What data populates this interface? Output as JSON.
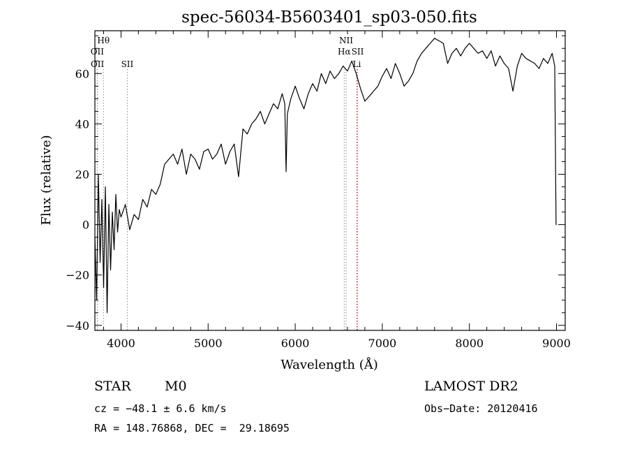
{
  "chart_data": {
    "type": "line",
    "title": "spec-56034-B5603401_sp03-050.fits",
    "xlabel": "Wavelength (Å)",
    "ylabel": "Flux (relative)",
    "xlim": [
      3700,
      9100
    ],
    "ylim": [
      -42,
      77
    ],
    "x_ticks": [
      4000,
      5000,
      6000,
      7000,
      8000,
      9000
    ],
    "y_ticks": [
      -40,
      -20,
      0,
      20,
      40,
      60
    ],
    "grid": false,
    "line_color": "#000000",
    "marker_color_grey": "#888888",
    "marker_color_red": "#cc2222",
    "line_markers": [
      {
        "label": "Hθ",
        "x": 3798,
        "row": 0,
        "color": "grey"
      },
      {
        "label": "OII",
        "x": 3727,
        "row": 1,
        "color": "grey"
      },
      {
        "label": "OII",
        "x": 3729,
        "row": 2,
        "color": "grey"
      },
      {
        "label": "SII",
        "x": 4072,
        "row": 2,
        "color": "grey"
      },
      {
        "label": "NII",
        "x": 6584,
        "row": 0,
        "color": "grey"
      },
      {
        "label": "Hα",
        "x": 6563,
        "row": 1,
        "color": "grey"
      },
      {
        "label": "SII",
        "x": 6717,
        "row": 1,
        "color": "grey"
      },
      {
        "label": "Li",
        "x": 6708,
        "row": 2,
        "color": "red"
      }
    ],
    "series": [
      {
        "x": [
          3700,
          3720,
          3740,
          3760,
          3780,
          3800,
          3820,
          3840,
          3860,
          3880,
          3900,
          3920,
          3940,
          3960,
          3980,
          4000,
          4050,
          4100,
          4150,
          4200,
          4250,
          4300,
          4350,
          4400,
          4450,
          4500,
          4550,
          4600,
          4650,
          4700,
          4750,
          4800,
          4850,
          4900,
          4950,
          5000,
          5050,
          5100,
          5150,
          5200,
          5250,
          5300,
          5350,
          5400,
          5450,
          5500,
          5550,
          5600,
          5650,
          5700,
          5750,
          5800,
          5850,
          5880,
          5895,
          5910,
          5950,
          6000,
          6050,
          6100,
          6150,
          6200,
          6250,
          6300,
          6350,
          6400,
          6450,
          6500,
          6550,
          6600,
          6650,
          6700,
          6750,
          6800,
          6850,
          6900,
          6950,
          7000,
          7050,
          7100,
          7150,
          7200,
          7250,
          7300,
          7350,
          7400,
          7450,
          7500,
          7550,
          7600,
          7650,
          7700,
          7750,
          7800,
          7850,
          7900,
          7950,
          8000,
          8050,
          8100,
          8150,
          8200,
          8250,
          8300,
          8350,
          8400,
          8450,
          8500,
          8550,
          8600,
          8650,
          8700,
          8750,
          8800,
          8850,
          8900,
          8950,
          8980,
          8995,
          9000
        ],
        "y": [
          -5,
          -30,
          20,
          -15,
          10,
          -25,
          15,
          -35,
          8,
          -18,
          5,
          -10,
          12,
          -3,
          6,
          3,
          8,
          -2,
          4,
          2,
          10,
          7,
          14,
          12,
          16,
          24,
          26,
          28,
          24,
          30,
          20,
          28,
          26,
          22,
          29,
          30,
          26,
          28,
          32,
          24,
          29,
          32,
          19,
          38,
          36,
          40,
          42,
          45,
          40,
          44,
          48,
          46,
          52,
          48,
          21,
          44,
          50,
          55,
          50,
          46,
          52,
          56,
          53,
          60,
          56,
          61,
          58,
          60,
          63,
          61,
          65,
          60,
          54,
          49,
          51,
          53,
          55,
          59,
          62,
          58,
          64,
          60,
          55,
          57,
          60,
          65,
          68,
          70,
          72,
          74,
          73,
          72,
          64,
          68,
          70,
          67,
          70,
          72,
          70,
          68,
          69,
          66,
          69,
          63,
          67,
          64,
          62,
          53,
          63,
          68,
          66,
          65,
          64,
          62,
          66,
          64,
          68,
          63,
          0,
          0
        ]
      }
    ]
  },
  "info": {
    "object_class": "STAR",
    "subclass": "M0",
    "survey": "LAMOST DR2",
    "redshift_line": "cz = −48.1 ± 6.6 km/s",
    "obs_date": "Obs−Date: 20120416",
    "coords": "RA = 148.76868, DEC =  29.18695"
  }
}
